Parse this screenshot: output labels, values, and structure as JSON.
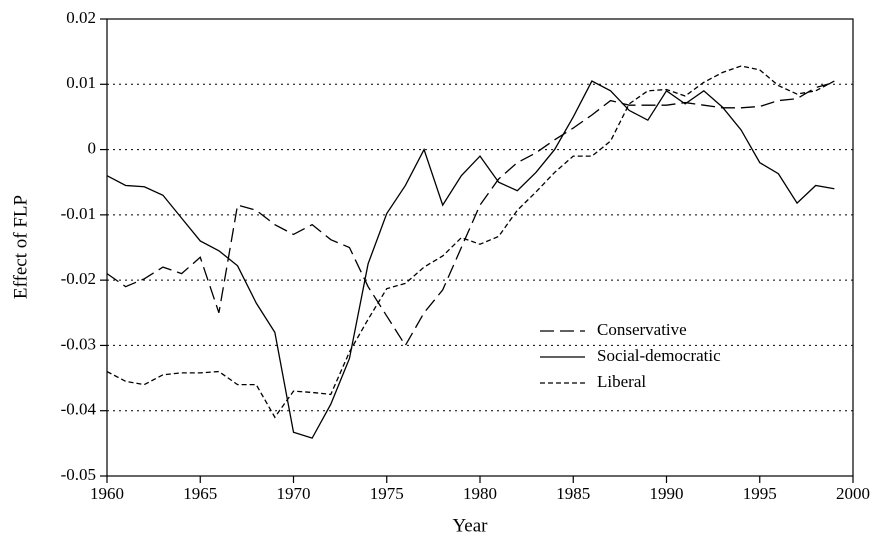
{
  "chart_data": {
    "type": "line",
    "xlabel": "Year",
    "ylabel": "Effect of FLP",
    "x": [
      1960,
      1961,
      1962,
      1963,
      1964,
      1965,
      1966,
      1967,
      1968,
      1969,
      1970,
      1971,
      1972,
      1973,
      1974,
      1975,
      1976,
      1977,
      1978,
      1979,
      1980,
      1981,
      1982,
      1983,
      1984,
      1985,
      1986,
      1987,
      1988,
      1989,
      1990,
      1991,
      1992,
      1993,
      1994,
      1995,
      1996,
      1997,
      1998,
      1999
    ],
    "series": [
      {
        "name": "Conservative",
        "color": "#000000",
        "linestyle": "dashed",
        "values": [
          -0.019,
          -0.021,
          -0.0198,
          -0.018,
          -0.019,
          -0.0165,
          -0.025,
          -0.0085,
          -0.0093,
          -0.0115,
          -0.013,
          -0.0115,
          -0.0138,
          -0.015,
          -0.021,
          -0.0255,
          -0.03,
          -0.025,
          -0.0215,
          -0.015,
          -0.0085,
          -0.0045,
          -0.002,
          -0.0005,
          0.0015,
          0.0033,
          0.0053,
          0.0075,
          0.0068,
          0.0068,
          0.0068,
          0.0072,
          0.0068,
          0.0064,
          0.0064,
          0.0066,
          0.0075,
          0.0078,
          0.0095,
          0.0103
        ]
      },
      {
        "name": "Social-democratic",
        "color": "#000000",
        "linestyle": "solid",
        "values": [
          -0.004,
          -0.0055,
          -0.0057,
          -0.007,
          -0.0105,
          -0.014,
          -0.0155,
          -0.0178,
          -0.0235,
          -0.028,
          -0.0433,
          -0.0442,
          -0.039,
          -0.032,
          -0.0175,
          -0.0098,
          -0.0055,
          0.0,
          -0.0085,
          -0.004,
          -0.001,
          -0.005,
          -0.0063,
          -0.0035,
          0.0,
          0.005,
          0.0105,
          0.009,
          0.006,
          0.0045,
          0.009,
          0.007,
          0.009,
          0.0065,
          0.003,
          -0.002,
          -0.0037,
          -0.0082,
          -0.0055,
          -0.006
        ]
      },
      {
        "name": "Liberal",
        "color": "#000000",
        "linestyle": "dotted",
        "values": [
          -0.034,
          -0.0355,
          -0.036,
          -0.0345,
          -0.0342,
          -0.0342,
          -0.034,
          -0.036,
          -0.036,
          -0.041,
          -0.037,
          -0.0372,
          -0.0375,
          -0.031,
          -0.026,
          -0.0213,
          -0.0205,
          -0.018,
          -0.0163,
          -0.0135,
          -0.0145,
          -0.0133,
          -0.0093,
          -0.0065,
          -0.0035,
          -0.001,
          -0.001,
          0.0013,
          0.007,
          0.009,
          0.0092,
          0.0082,
          0.0103,
          0.0118,
          0.0128,
          0.0122,
          0.0098,
          0.0085,
          0.009,
          0.0105
        ]
      }
    ],
    "xlim": [
      1960,
      2000
    ],
    "xticks": [
      1960,
      1965,
      1970,
      1975,
      1980,
      1985,
      1990,
      1995,
      2000
    ],
    "ylim": [
      -0.05,
      0.02
    ],
    "yticks": [
      0.02,
      0.01,
      0,
      -0.01,
      -0.02,
      -0.03,
      -0.04,
      -0.05
    ],
    "grid": true,
    "legend": "lower right"
  }
}
